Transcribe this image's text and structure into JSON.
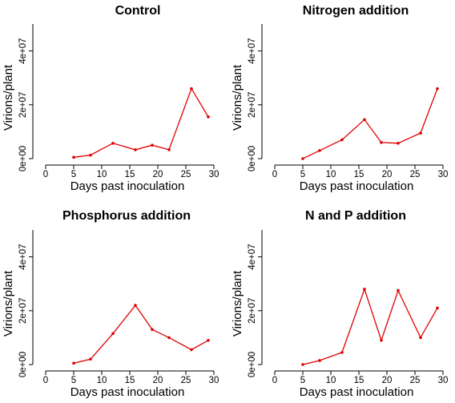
{
  "chart_data": [
    {
      "type": "line",
      "title": "Control",
      "xlabel": "Days past inoculation",
      "ylabel": "Virions/plant",
      "xlim": [
        0,
        30
      ],
      "ylim": [
        0,
        50000000
      ],
      "xticks": [
        0,
        5,
        10,
        15,
        20,
        25,
        30
      ],
      "yticks": [
        0,
        20000000,
        40000000
      ],
      "yticklabels": [
        "0e+00",
        "2e+07",
        "4e+07"
      ],
      "grid": false,
      "series": [
        {
          "x": [
            5,
            8,
            12,
            16,
            19,
            22,
            26,
            29
          ],
          "y": [
            500000,
            1300000,
            5700000,
            3300000,
            5000000,
            3300000,
            26000000,
            15500000
          ],
          "color": "#e00000"
        }
      ]
    },
    {
      "type": "line",
      "title": "Nitrogen addition",
      "xlabel": "Days past inoculation",
      "ylabel": "Virions/plant",
      "xlim": [
        0,
        30
      ],
      "ylim": [
        0,
        50000000
      ],
      "xticks": [
        0,
        5,
        10,
        15,
        20,
        25,
        30
      ],
      "yticks": [
        0,
        20000000,
        40000000
      ],
      "yticklabels": [
        "0e+00",
        "2e+07",
        "4e+07"
      ],
      "grid": false,
      "series": [
        {
          "x": [
            5,
            8,
            12,
            16,
            19,
            22,
            26,
            29
          ],
          "y": [
            0,
            3000000,
            7000000,
            14500000,
            6000000,
            5700000,
            9500000,
            26000000
          ],
          "color": "#e00000"
        }
      ]
    },
    {
      "type": "line",
      "title": "Phosphorus addition",
      "xlabel": "Days past inoculation",
      "ylabel": "Virions/plant",
      "xlim": [
        0,
        30
      ],
      "ylim": [
        0,
        50000000
      ],
      "xticks": [
        0,
        5,
        10,
        15,
        20,
        25,
        30
      ],
      "yticks": [
        0,
        20000000,
        40000000
      ],
      "yticklabels": [
        "0e+00",
        "2e+07",
        "4e+07"
      ],
      "grid": false,
      "series": [
        {
          "x": [
            5,
            8,
            12,
            16,
            19,
            22,
            26,
            29
          ],
          "y": [
            500000,
            2000000,
            11500000,
            22000000,
            13000000,
            10000000,
            5500000,
            9000000
          ],
          "color": "#e00000"
        }
      ]
    },
    {
      "type": "line",
      "title": "N and P addition",
      "xlabel": "Days past inoculation",
      "ylabel": "Virions/plant",
      "xlim": [
        0,
        30
      ],
      "ylim": [
        0,
        50000000
      ],
      "xticks": [
        0,
        5,
        10,
        15,
        20,
        25,
        30
      ],
      "yticks": [
        0,
        20000000,
        40000000
      ],
      "yticklabels": [
        "0e+00",
        "2e+07",
        "4e+07"
      ],
      "grid": false,
      "series": [
        {
          "x": [
            5,
            8,
            12,
            16,
            19,
            22,
            26,
            29
          ],
          "y": [
            0,
            1500000,
            4500000,
            28000000,
            9000000,
            27500000,
            10000000,
            21000000
          ],
          "color": "#e00000"
        }
      ]
    }
  ]
}
